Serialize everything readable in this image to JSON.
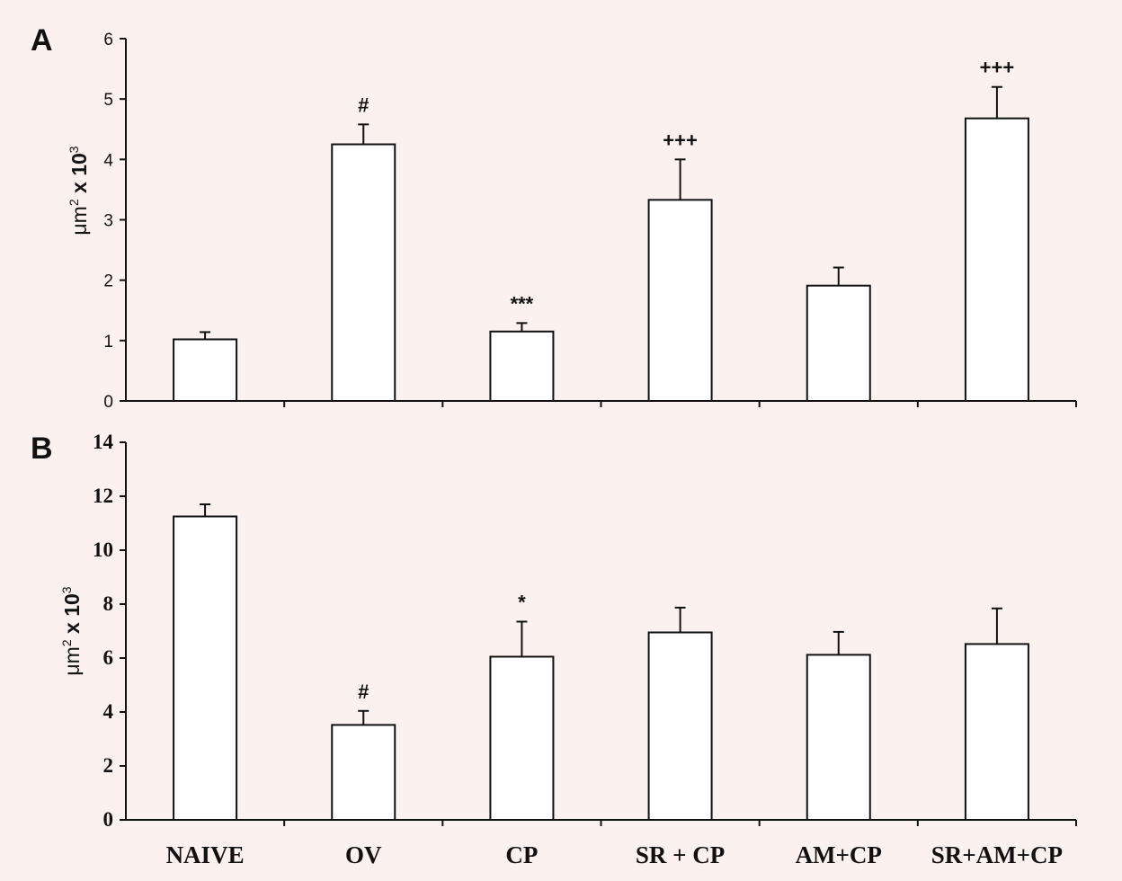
{
  "colors": {
    "background": "#fbf1ee",
    "bar_fill": "#ffffff",
    "ink": "#111111"
  },
  "chart_data": [
    {
      "type": "bar",
      "panel_label": "A",
      "ylabel_main": "μm",
      "ylabel_sup1": "2",
      "ylabel_mid": " x 10",
      "ylabel_sup2": "3",
      "categories": [
        "NAIVE",
        "OV",
        "CP",
        "SR + CP",
        "AM+CP",
        "SR+AM+CP"
      ],
      "values": [
        1.02,
        4.25,
        1.15,
        3.33,
        1.91,
        4.68
      ],
      "errors": [
        0.12,
        0.33,
        0.14,
        0.67,
        0.3,
        0.52
      ],
      "annotations": [
        "",
        "#",
        "***",
        "+++",
        "",
        "+++"
      ],
      "ylim": [
        0,
        6
      ],
      "yticks": [
        0,
        1,
        2,
        3,
        4,
        5,
        6
      ],
      "grid": false
    },
    {
      "type": "bar",
      "panel_label": "B",
      "ylabel_main": "μm",
      "ylabel_sup1": "2",
      "ylabel_mid": " x 10",
      "ylabel_sup2": "3",
      "categories": [
        "NAIVE",
        "OV",
        "CP",
        "SR + CP",
        "AM+CP",
        "SR+AM+CP"
      ],
      "values": [
        11.25,
        3.52,
        6.05,
        6.95,
        6.12,
        6.52
      ],
      "errors": [
        0.45,
        0.52,
        1.3,
        0.92,
        0.85,
        1.32
      ],
      "annotations": [
        "",
        "#",
        "*",
        "",
        "",
        ""
      ],
      "ylim": [
        0,
        14
      ],
      "yticks": [
        0,
        2,
        4,
        6,
        8,
        10,
        12,
        14
      ],
      "grid": false
    }
  ]
}
